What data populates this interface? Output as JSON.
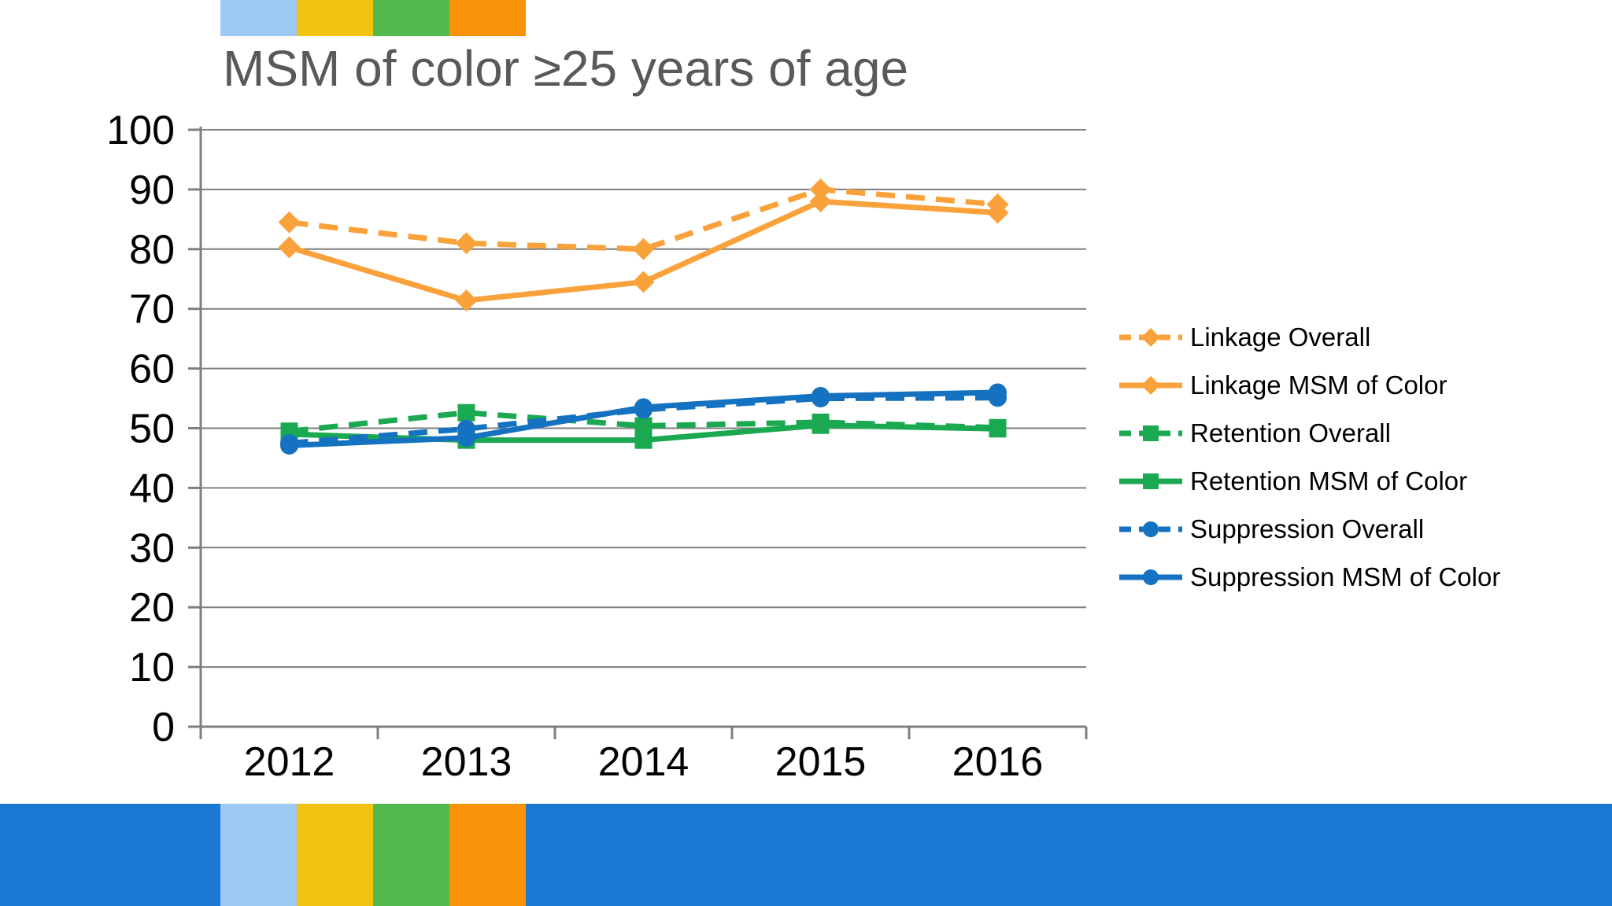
{
  "chart_data": {
    "type": "line",
    "title": "MSM of color ≥25 years of age",
    "categories": [
      "2012",
      "2013",
      "2014",
      "2015",
      "2016"
    ],
    "series": [
      {
        "name": "Linkage Overall",
        "values": [
          84.5,
          81.0,
          80.0,
          90.0,
          87.5
        ],
        "color": "#F9A23C",
        "dashed": true,
        "marker": "diamond"
      },
      {
        "name": "Linkage MSM of Color",
        "values": [
          80.3,
          71.4,
          74.5,
          88.0,
          86.1
        ],
        "color": "#F9A23C",
        "dashed": false,
        "marker": "diamond"
      },
      {
        "name": "Retention Overall",
        "values": [
          49.5,
          52.6,
          50.4,
          51.0,
          50.1
        ],
        "color": "#1AA850",
        "dashed": true,
        "marker": "square"
      },
      {
        "name": "Retention MSM of Color",
        "values": [
          49.0,
          48.0,
          48.0,
          50.5,
          49.9
        ],
        "color": "#1AA850",
        "dashed": false,
        "marker": "square"
      },
      {
        "name": "Suppression Overall",
        "values": [
          47.5,
          49.9,
          53.1,
          55.0,
          55.1
        ],
        "color": "#1572C1",
        "dashed": true,
        "marker": "circle"
      },
      {
        "name": "Suppression MSM of Color",
        "values": [
          47.1,
          48.4,
          53.5,
          55.4,
          56.0
        ],
        "color": "#1572C1",
        "dashed": false,
        "marker": "circle"
      }
    ],
    "ylim": [
      0,
      100
    ],
    "yticks": [
      100,
      90,
      80,
      70,
      60,
      50,
      40,
      30,
      20,
      10,
      0
    ],
    "grid": true,
    "legend_position": "right",
    "gridline_color": "#7F7F7F",
    "axis_text_color": "#000000"
  },
  "decorations": {
    "strip_colors": [
      "#9DC9F4",
      "#F2C311",
      "#53B84D",
      "#F9940A"
    ],
    "footer_color": "#1B79D3"
  }
}
